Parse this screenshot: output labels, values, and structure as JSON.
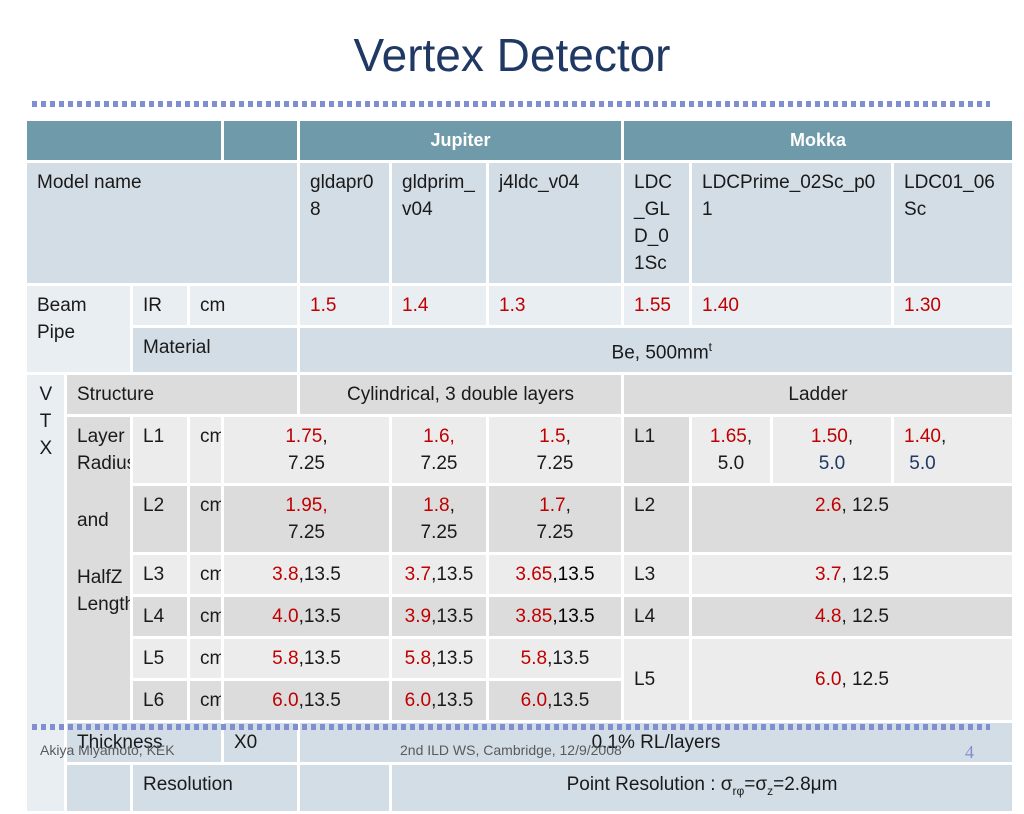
{
  "slide": {
    "title": "Vertex Detector",
    "footer_left": "Akiya Miyamoto, KEK",
    "footer_center": "2nd ILD WS, Cambridge, 12/9/2008",
    "page_number": "4"
  },
  "table": {
    "headers": {
      "jupiter": "Jupiter",
      "mokka": "Mokka"
    },
    "model_row": {
      "label": "Model name",
      "models": [
        "gldapr08",
        "gldprim_v04",
        "j4ldc_v04",
        "LDC_GLD_01Sc",
        "LDCPrime_02Sc_p01",
        "LDC01_06Sc"
      ]
    },
    "beam_pipe": {
      "label": "Beam Pipe",
      "ir_label": "IR",
      "unit": "cm",
      "ir_values": [
        "1.5",
        "1.4",
        "1.3",
        "1.55",
        "1.40",
        "1.30"
      ],
      "material_label": "Material",
      "material_value": "Be,  500mm",
      "material_sup": "t"
    },
    "vtx": {
      "label": "VTX",
      "structure_label": "Structure",
      "jupiter_structure": "Cylindrical, 3 double layers",
      "mokka_structure": "Ladder",
      "layer_label_1": "Layer Radius",
      "layer_label_2": "and",
      "layer_label_3": "HalfZ Length",
      "unit": "cm",
      "layers": [
        {
          "name": "L1",
          "jupiter": [
            {
              "r": "1.75",
              "sep": ",",
              "z": "7.25"
            },
            {
              "r": "1.6,",
              "sep": "",
              "z": "7.25"
            },
            {
              "r": "1.5",
              "sep": ",",
              "z": "7.25"
            }
          ],
          "mokka": [
            {
              "r": "1.65",
              "sep": ",",
              "z": "5.0"
            },
            {
              "r": "1.50",
              "sep": ",",
              "z": "5.0"
            },
            {
              "r": "1.40",
              "sep": ",",
              "z": "5.0"
            }
          ]
        },
        {
          "name": "L2",
          "jupiter": [
            {
              "r": "1.95,",
              "sep": "",
              "z": "7.25"
            },
            {
              "r": "1.8",
              "sep": ",",
              "z": "7.25"
            },
            {
              "r": "1.7",
              "sep": ",",
              "z": "7.25"
            }
          ],
          "mokka_r": "2.6",
          "mokka_rest": ", 12.5"
        },
        {
          "name": "L3",
          "jupiter": [
            {
              "r": "3.8",
              "rest": ",13.5"
            },
            {
              "r": "3.7",
              "rest": ",13.5"
            },
            {
              "r": "3.65",
              "rest": ",13.5"
            }
          ],
          "mokka_r": "3.7",
          "mokka_rest": ", 12.5"
        },
        {
          "name": "L4",
          "jupiter": [
            {
              "r": "4.0",
              "rest": ",13.5"
            },
            {
              "r": "3.9",
              "rest": ",13.5"
            },
            {
              "r": "3.85",
              "rest": ",13.5"
            }
          ],
          "mokka_r": "4.8",
          "mokka_rest": ", 12.5"
        },
        {
          "name": "L5",
          "jupiter": [
            {
              "r": "5.8",
              "rest": ",13.5"
            },
            {
              "r": "5.8",
              "rest": ",13.5"
            },
            {
              "r": "5.8",
              "rest": ",13.5"
            }
          ],
          "mokka_r": "6.0",
          "mokka_rest": ", 12.5"
        },
        {
          "name": "L6",
          "jupiter": [
            {
              "r": "6.0",
              "rest": ",13.5"
            },
            {
              "r": "6.0",
              "rest": ",13.5"
            },
            {
              "r": "6.0",
              "rest": ",13.5"
            }
          ]
        }
      ],
      "thickness_label": "Thickness",
      "thickness_unit": "X0",
      "thickness_value": "0.1% RL/layers",
      "resolution_label": "Resolution",
      "resolution_prefix": "Point Resolution : ",
      "sigma": "σ",
      "sub_rphi": "rφ",
      "eq": "=",
      "sub_z": "z",
      "resolution_value": "=2.8",
      "mu": "μ",
      "unit_m": "m"
    }
  },
  "colors": {
    "title": "#1f3864",
    "header_bg": "#6f9aaa",
    "row_a": "#d3dde6",
    "row_b": "#e9eef2",
    "value_red": "#c00000",
    "dots": "#7f8fd0"
  }
}
